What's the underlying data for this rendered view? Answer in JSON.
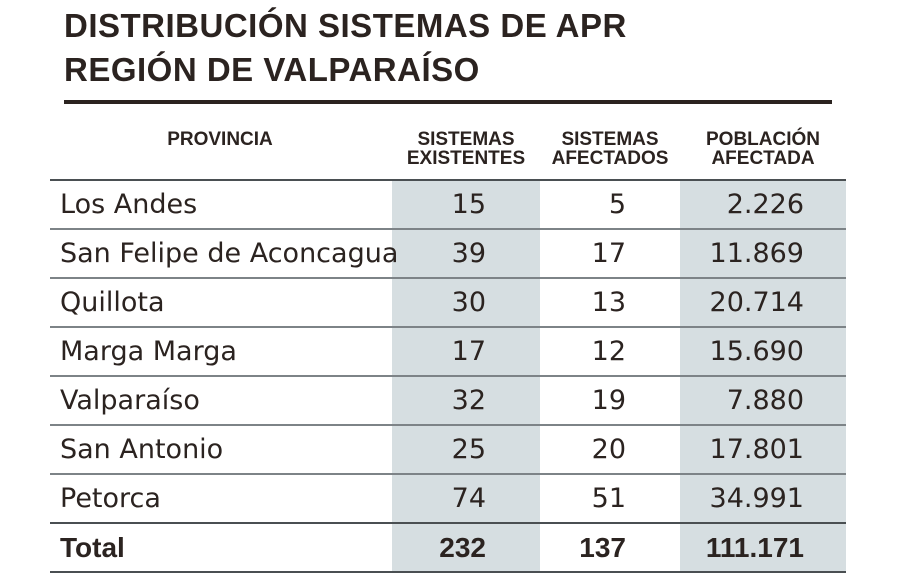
{
  "title": {
    "line1": "DISTRIBUCIÓN SISTEMAS DE APR",
    "line2": "REGIÓN DE VALPARAÍSO"
  },
  "chart_data": {
    "type": "table",
    "columns": [
      {
        "line1": "PROVINCIA",
        "line2": ""
      },
      {
        "line1": "SISTEMAS",
        "line2": "EXISTENTES"
      },
      {
        "line1": "SISTEMAS",
        "line2": "AFECTADOS"
      },
      {
        "line1": "POBLACIÓN",
        "line2": "AFECTADA"
      }
    ],
    "rows": [
      {
        "provincia": "Los Andes",
        "existentes": "15",
        "afectados": "5",
        "poblacion": "2.226"
      },
      {
        "provincia": "San Felipe de Aconcagua",
        "existentes": "39",
        "afectados": "17",
        "poblacion": "11.869"
      },
      {
        "provincia": "Quillota",
        "existentes": "30",
        "afectados": "13",
        "poblacion": "20.714"
      },
      {
        "provincia": "Marga Marga",
        "existentes": "17",
        "afectados": "12",
        "poblacion": "15.690"
      },
      {
        "provincia": "Valparaíso",
        "existentes": "32",
        "afectados": "19",
        "poblacion": "7.880"
      },
      {
        "provincia": "San Antonio",
        "existentes": "25",
        "afectados": "20",
        "poblacion": "17.801"
      },
      {
        "provincia": "Petorca",
        "existentes": "74",
        "afectados": "51",
        "poblacion": "34.991"
      }
    ],
    "total": {
      "provincia": "Total",
      "existentes": "232",
      "afectados": "137",
      "poblacion": "111.171"
    },
    "shaded_column_color": "#d6dee1",
    "text_color": "#2b2320"
  }
}
